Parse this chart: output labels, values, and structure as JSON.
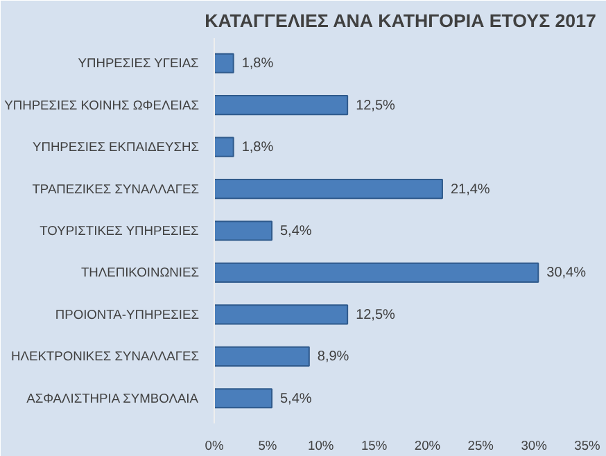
{
  "chart_data": {
    "type": "bar",
    "orientation": "horizontal",
    "title": "ΚΑΤΑΓΓΕΛΙΕΣ ΑΝΑ ΚΑΤΗΓΟΡΙΑ ΕΤΟΥΣ 2017",
    "categories": [
      "ΥΠΗΡΕΣΙΕΣ ΥΓΕΙΑΣ",
      "ΥΠΗΡΕΣΙΕΣ ΚΟΙΝΗΣ ΩΦΕΛΕΙΑΣ",
      "ΥΠΗΡΕΣΙΕΣ ΕΚΠΑΙΔΕΥΣΗΣ",
      "ΤΡΑΠΕΖΙΚΕΣ ΣΥΝΑΛΛΑΓΕΣ",
      "ΤΟΥΡΙΣΤΙΚΕΣ ΥΠΗΡΕΣΙΕΣ",
      "ΤΗΛΕΠΙΚΟΙΝΩΝΙΕΣ",
      "ΠΡΟΙΟΝΤΑ-ΥΠΗΡΕΣΙΕΣ",
      "ΗΛΕΚΤΡΟΝΙΚΕΣ ΣΥΝΑΛΛΑΓΕΣ",
      "ΑΣΦΑΛΙΣΤΗΡΙΑ ΣΥΜΒΟΛΑΙΑ"
    ],
    "values": [
      1.8,
      12.5,
      1.8,
      21.4,
      5.4,
      30.4,
      12.5,
      8.9,
      5.4
    ],
    "value_labels": [
      "1,8%",
      "12,5%",
      "1,8%",
      "21,4%",
      "5,4%",
      "30,4%",
      "12,5%",
      "8,9%",
      "5,4%"
    ],
    "color": "#4a7ebb",
    "xlim": [
      0,
      35
    ],
    "xticks": [
      {
        "value": 0,
        "label": "0%"
      },
      {
        "value": 5,
        "label": "5%"
      },
      {
        "value": 10,
        "label": "10%"
      },
      {
        "value": 15,
        "label": "15%"
      },
      {
        "value": 20,
        "label": "20%"
      },
      {
        "value": 25,
        "label": "25%"
      },
      {
        "value": 30,
        "label": "30%"
      },
      {
        "value": 35,
        "label": "35%"
      }
    ],
    "grid": false
  }
}
